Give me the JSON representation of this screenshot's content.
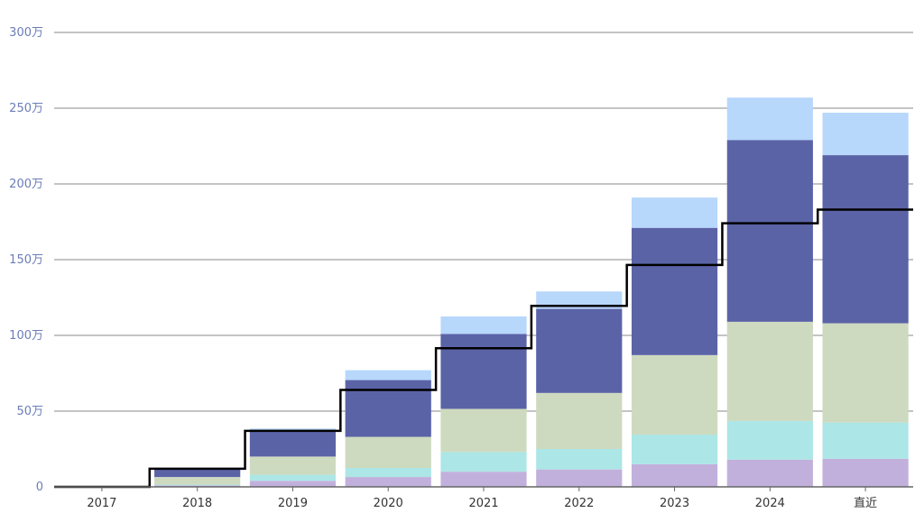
{
  "chart_data": {
    "type": "bar",
    "stacked": true,
    "categories": [
      "2017",
      "2018",
      "2019",
      "2020",
      "2021",
      "2022",
      "2023",
      "2024",
      "直近"
    ],
    "y_tick_labels": [
      "0",
      "50万",
      "100万",
      "150万",
      "200万",
      "250万",
      "300万"
    ],
    "y_tick_values": [
      0,
      500000,
      1000000,
      1500000,
      2000000,
      2500000,
      3000000
    ],
    "ylim": [
      0,
      3000000
    ],
    "grid": true,
    "colors": {
      "series": [
        "#c2b0dc",
        "#ace6e6",
        "#cddabf",
        "#5b63a7",
        "#b7d7fb"
      ],
      "line": "#000000",
      "axis": "#666666",
      "grid": "#8a8a8a",
      "ytick_text": "#6b7db8",
      "xtick_text": "#333333"
    },
    "series": [
      {
        "values": [
          0,
          10000,
          40000,
          65000,
          100000,
          115000,
          150000,
          180000,
          185000
        ]
      },
      {
        "values": [
          0,
          5000,
          40000,
          60000,
          130000,
          135000,
          195000,
          255000,
          240000
        ]
      },
      {
        "values": [
          0,
          50000,
          120000,
          205000,
          285000,
          370000,
          525000,
          655000,
          655000
        ]
      },
      {
        "values": [
          0,
          50000,
          165000,
          375000,
          495000,
          555000,
          840000,
          1200000,
          1110000
        ]
      },
      {
        "values": [
          0,
          0,
          20000,
          65000,
          115000,
          115000,
          200000,
          280000,
          280000
        ]
      }
    ],
    "line_values": [
      0,
      120000,
      370000,
      640000,
      915000,
      1195000,
      1465000,
      1740000,
      1830000
    ],
    "line_style": "step"
  }
}
